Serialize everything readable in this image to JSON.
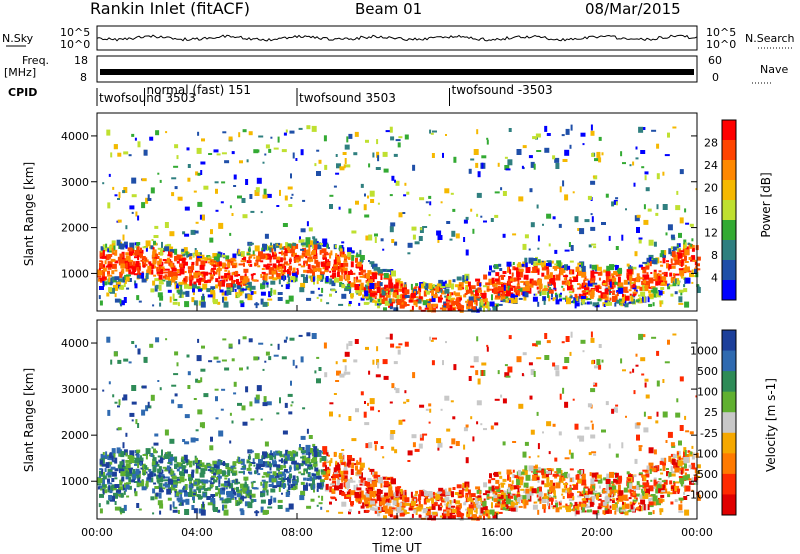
{
  "header": {
    "title": "Rankin Inlet (fitACF)",
    "beam": "Beam 01",
    "date": "08/Mar/2015"
  },
  "strip_labels": {
    "nsky": "N.Sky",
    "freq": "Freq.",
    "freq_unit": "[MHz]",
    "cpid": "CPID",
    "nsearch": "N.Search",
    "nave": "Nave"
  },
  "strip_ticks": {
    "noise_left_top": "10^5",
    "noise_left_bottom": "10^0",
    "noise_right_top": "10^5",
    "noise_right_bottom": "10^0",
    "freq_left_top": "18",
    "freq_left_bottom": "8",
    "nave_right_top": "60",
    "nave_right_bottom": "0"
  },
  "cpid_segments": [
    {
      "label": "twofsound 3503",
      "start_h": 0.0
    },
    {
      "label": "normal (fast) 151",
      "start_h": 1.9
    },
    {
      "label": "twofsound 3503",
      "start_h": 8.0
    },
    {
      "label": "twofsound -3503",
      "start_h": 14.1
    }
  ],
  "axes": {
    "xlabel": "Time UT",
    "ylabel": "Slant Range [km]",
    "x_ticks": [
      "00:00",
      "04:00",
      "08:00",
      "12:00",
      "16:00",
      "20:00",
      "00:00"
    ],
    "y_ticks": [
      1000,
      2000,
      3000,
      4000
    ],
    "x_range_h": [
      0,
      24
    ],
    "y_range_km": [
      180,
      4500
    ]
  },
  "chart_data": [
    {
      "type": "heatmap",
      "quantity": "Power",
      "colorbar_label": "Power [dB]",
      "colorbar_ticks": [
        "28",
        "24",
        "20",
        "16",
        "12",
        "8",
        "4"
      ],
      "colorbar_colors": [
        "#ff0000",
        "#ff4400",
        "#ff8800",
        "#f5b800",
        "#bfe030",
        "#33aa33",
        "#2f7f7f",
        "#1f4fa8",
        "#0000ff"
      ],
      "xlim_h": [
        0,
        24
      ],
      "ylim_km": [
        180,
        4500
      ],
      "clim": [
        0,
        30
      ]
    },
    {
      "type": "heatmap",
      "quantity": "Velocity",
      "colorbar_label": "Velocity [m s-1]",
      "colorbar_ticks": [
        "1000",
        "500",
        "100",
        "25",
        "-25",
        "-100",
        "-500",
        "-1000"
      ],
      "colorbar_colors": [
        "#1c3f9a",
        "#2f6ab0",
        "#2e8b57",
        "#60b030",
        "#c8c8c8",
        "#f5a800",
        "#ff7a00",
        "#ff2a00",
        "#e00000"
      ],
      "xlim_h": [
        0,
        24
      ],
      "ylim_km": [
        180,
        4500
      ]
    }
  ]
}
